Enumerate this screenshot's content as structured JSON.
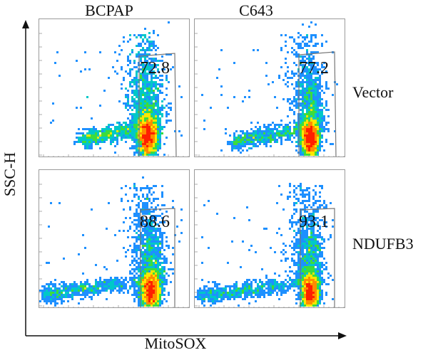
{
  "chart_data": {
    "type": "scatter",
    "xlabel": "MitoSOX",
    "ylabel": "SSC-H",
    "columns": [
      "BCPAP",
      "C643"
    ],
    "rows": [
      "Vector",
      "NDUFB3"
    ],
    "panels": [
      {
        "column": "BCPAP",
        "row": "Vector",
        "gate_value": "72.8"
      },
      {
        "column": "C643",
        "row": "Vector",
        "gate_value": "77.2"
      },
      {
        "column": "BCPAP",
        "row": "NDUFB3",
        "gate_value": "88.6"
      },
      {
        "column": "C643",
        "row": "NDUFB3",
        "gate_value": "93.1"
      }
    ],
    "colormap": [
      "#2d2dff",
      "#1e90ff",
      "#00c8c8",
      "#3cdc3c",
      "#ffe600",
      "#ff8c00",
      "#ff2000"
    ],
    "grid": false
  }
}
